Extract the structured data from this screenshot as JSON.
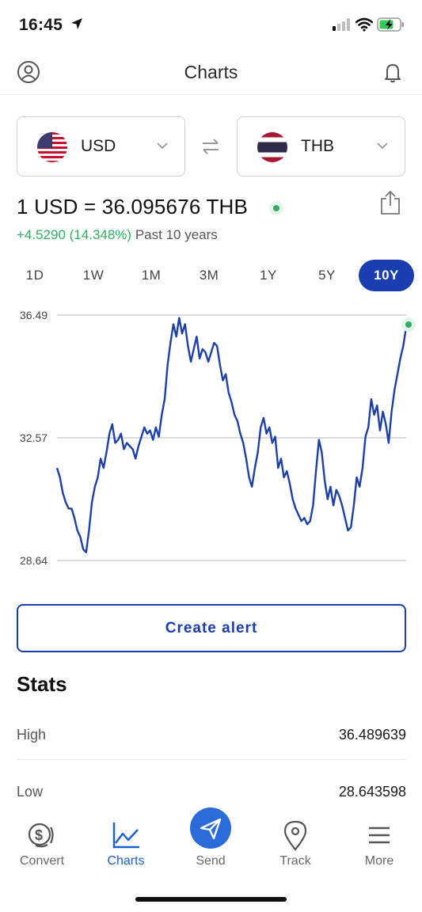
{
  "status_bar": {
    "time": "16:45"
  },
  "header": {
    "title": "Charts"
  },
  "converter": {
    "from_code": "USD",
    "to_code": "THB"
  },
  "rate": {
    "text": "1 USD = 36.095676 THB",
    "change": "+4.5290 (14.348%)",
    "period_label": "Past 10 years"
  },
  "tabs": [
    {
      "label": "1D",
      "active": false
    },
    {
      "label": "1W",
      "active": false
    },
    {
      "label": "1M",
      "active": false
    },
    {
      "label": "3M",
      "active": false
    },
    {
      "label": "1Y",
      "active": false
    },
    {
      "label": "5Y",
      "active": false
    },
    {
      "label": "10Y",
      "active": true
    }
  ],
  "chart_data": {
    "type": "line",
    "title": "",
    "xlabel": "",
    "ylabel": "",
    "ylim": [
      28.64,
      36.49
    ],
    "y_ticks": [
      "36.49",
      "32.57",
      "28.64"
    ],
    "grid": true,
    "series": [
      {
        "values": [
          31.6,
          31.3,
          30.8,
          30.5,
          30.3,
          30.3,
          30.0,
          29.6,
          29.4,
          29.0,
          28.9,
          29.6,
          30.5,
          31.0,
          31.3,
          31.9,
          31.6,
          32.1,
          32.7,
          33.0,
          32.4,
          32.5,
          32.7,
          32.2,
          32.4,
          32.3,
          32.2,
          31.9,
          32.3,
          32.6,
          32.9,
          32.7,
          32.8,
          32.5,
          32.9,
          32.6,
          33.3,
          33.8,
          34.9,
          35.6,
          36.2,
          35.8,
          36.4,
          35.9,
          36.2,
          35.5,
          35.0,
          35.4,
          35.8,
          35.1,
          35.4,
          35.3,
          35.0,
          35.3,
          35.6,
          35.5,
          34.9,
          34.4,
          34.6,
          34.0,
          33.7,
          33.3,
          33.1,
          32.7,
          32.4,
          31.9,
          31.3,
          31.0,
          31.6,
          32.1,
          32.9,
          33.2,
          32.7,
          32.9,
          32.4,
          32.6,
          31.6,
          31.9,
          31.3,
          31.5,
          31.1,
          30.6,
          30.3,
          30.1,
          29.9,
          30.0,
          29.8,
          29.9,
          30.4,
          31.5,
          32.5,
          32.1,
          31.2,
          30.6,
          31.0,
          30.4,
          30.9,
          30.7,
          30.4,
          30.0,
          29.6,
          29.7,
          30.4,
          31.3,
          31.0,
          31.6,
          32.6,
          32.9,
          33.8,
          33.3,
          33.6,
          32.8,
          33.4,
          33.0,
          32.4,
          33.4,
          34.1,
          34.6,
          35.1,
          35.5,
          36.1
        ]
      }
    ]
  },
  "alert_button": {
    "label": "Create alert"
  },
  "stats": {
    "title": "Stats",
    "rows": [
      {
        "label": "High",
        "value": "36.489639"
      },
      {
        "label": "Low",
        "value": "28.643598"
      }
    ]
  },
  "nav": [
    {
      "label": "Convert",
      "icon": "convert-icon",
      "active": false
    },
    {
      "label": "Charts",
      "icon": "chart-icon",
      "active": true
    },
    {
      "label": "Send",
      "icon": "send-icon",
      "active": false
    },
    {
      "label": "Track",
      "icon": "location-pin-icon",
      "active": false
    },
    {
      "label": "More",
      "icon": "menu-icon",
      "active": false
    }
  ],
  "colors": {
    "accent": "#1a3eb0",
    "line": "#1c3fa8",
    "positive": "#2fae62",
    "nav_active": "#1a5fd0"
  }
}
